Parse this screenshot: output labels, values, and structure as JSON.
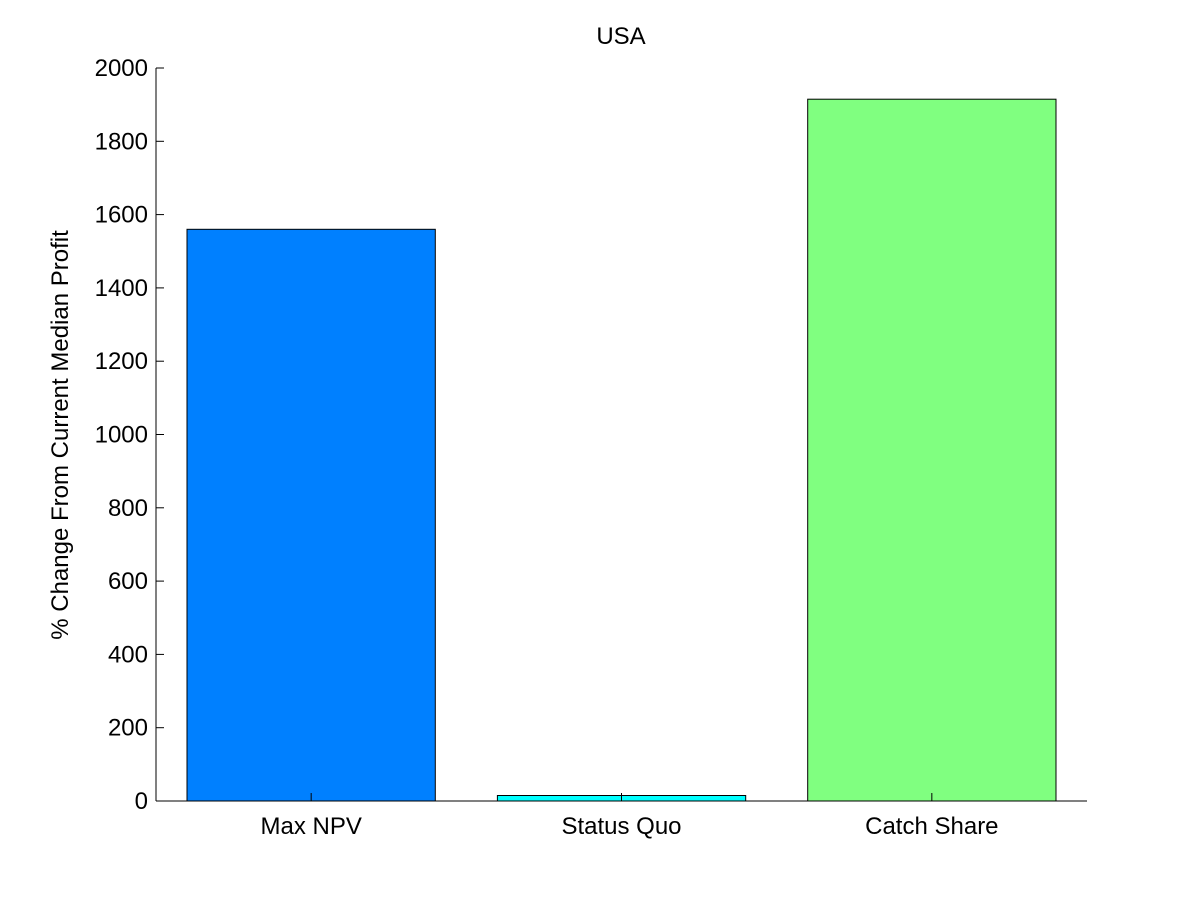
{
  "chart_data": {
    "type": "bar",
    "title": "USA",
    "xlabel": "",
    "ylabel": "% Change From Current Median Profit",
    "categories": [
      "Max NPV",
      "Status Quo",
      "Catch Share"
    ],
    "values": [
      1560,
      15,
      1915
    ],
    "bar_colors": [
      "#0080ff",
      "#00ffff",
      "#80ff80"
    ],
    "ylim": [
      0,
      2000
    ],
    "yticks": [
      0,
      200,
      400,
      600,
      800,
      1000,
      1200,
      1400,
      1600,
      1800,
      2000
    ],
    "grid": false,
    "legend": "none"
  }
}
